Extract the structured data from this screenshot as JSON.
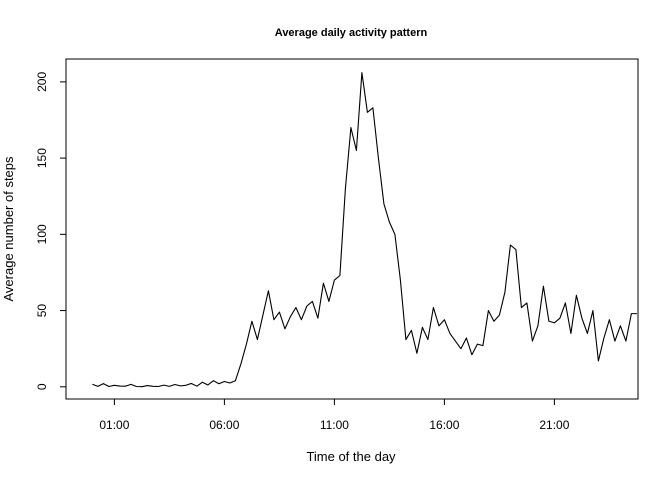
{
  "chart_data": {
    "type": "line",
    "title": "Average daily activity pattern",
    "xlabel": "Time of the day",
    "ylabel": "Average number of steps",
    "x_unit": "time of day (hours)",
    "xlim": [
      -1.2,
      24.8
    ],
    "ylim": [
      -8,
      215
    ],
    "x_ticks": [
      {
        "value": 1,
        "label": "01:00"
      },
      {
        "value": 6,
        "label": "06:00"
      },
      {
        "value": 11,
        "label": "11:00"
      },
      {
        "value": 16,
        "label": "16:00"
      },
      {
        "value": 21,
        "label": "21:00"
      }
    ],
    "y_ticks": [
      {
        "value": 0,
        "label": "0"
      },
      {
        "value": 50,
        "label": "50"
      },
      {
        "value": 100,
        "label": "100"
      },
      {
        "value": 150,
        "label": "150"
      },
      {
        "value": 200,
        "label": "200"
      }
    ],
    "grid": false,
    "legend": "none",
    "series": [
      {
        "color": "#000000",
        "points": [
          [
            0,
            1.7
          ],
          [
            0.25,
            0.3
          ],
          [
            0.5,
            2.1
          ],
          [
            0.75,
            0.2
          ],
          [
            1,
            1.0
          ],
          [
            1.25,
            0.5
          ],
          [
            1.5,
            0.4
          ],
          [
            1.75,
            1.6
          ],
          [
            2,
            0.2
          ],
          [
            2.25,
            0.1
          ],
          [
            2.5,
            0.8
          ],
          [
            2.75,
            0.3
          ],
          [
            3,
            0.2
          ],
          [
            3.25,
            1.1
          ],
          [
            3.5,
            0.3
          ],
          [
            3.75,
            1.5
          ],
          [
            4,
            0.6
          ],
          [
            4.25,
            1.0
          ],
          [
            4.5,
            2.2
          ],
          [
            4.75,
            0.4
          ],
          [
            5,
            3.0
          ],
          [
            5.25,
            1.2
          ],
          [
            5.5,
            4.0
          ],
          [
            5.75,
            2.0
          ],
          [
            6,
            3.5
          ],
          [
            6.25,
            2.5
          ],
          [
            6.5,
            4.0
          ],
          [
            6.75,
            15
          ],
          [
            7,
            28
          ],
          [
            7.25,
            43
          ],
          [
            7.5,
            31
          ],
          [
            7.75,
            47
          ],
          [
            8,
            63
          ],
          [
            8.25,
            44
          ],
          [
            8.5,
            49
          ],
          [
            8.75,
            38
          ],
          [
            9,
            46
          ],
          [
            9.25,
            52
          ],
          [
            9.5,
            44
          ],
          [
            9.75,
            53
          ],
          [
            10,
            56
          ],
          [
            10.25,
            45
          ],
          [
            10.5,
            68
          ],
          [
            10.75,
            56
          ],
          [
            11,
            70
          ],
          [
            11.25,
            73
          ],
          [
            11.5,
            130
          ],
          [
            11.75,
            170
          ],
          [
            12,
            155
          ],
          [
            12.25,
            206
          ],
          [
            12.5,
            180
          ],
          [
            12.75,
            183
          ],
          [
            13,
            150
          ],
          [
            13.25,
            120
          ],
          [
            13.5,
            108
          ],
          [
            13.75,
            100
          ],
          [
            14,
            70
          ],
          [
            14.25,
            31
          ],
          [
            14.5,
            37
          ],
          [
            14.75,
            22
          ],
          [
            15,
            39
          ],
          [
            15.25,
            31
          ],
          [
            15.5,
            52
          ],
          [
            15.75,
            40
          ],
          [
            16,
            44
          ],
          [
            16.25,
            35
          ],
          [
            16.5,
            30
          ],
          [
            16.75,
            25
          ],
          [
            17,
            32
          ],
          [
            17.25,
            21
          ],
          [
            17.5,
            28
          ],
          [
            17.75,
            27
          ],
          [
            18,
            50
          ],
          [
            18.25,
            43
          ],
          [
            18.5,
            47
          ],
          [
            18.75,
            62
          ],
          [
            19,
            93
          ],
          [
            19.25,
            90
          ],
          [
            19.5,
            52
          ],
          [
            19.75,
            55
          ],
          [
            20,
            30
          ],
          [
            20.25,
            40
          ],
          [
            20.5,
            66
          ],
          [
            20.75,
            43
          ],
          [
            21,
            42
          ],
          [
            21.25,
            45
          ],
          [
            21.5,
            55
          ],
          [
            21.75,
            35
          ],
          [
            22,
            60
          ],
          [
            22.25,
            45
          ],
          [
            22.5,
            35
          ],
          [
            22.75,
            50
          ],
          [
            23,
            17
          ],
          [
            23.25,
            32
          ],
          [
            23.5,
            44
          ],
          [
            23.75,
            30
          ],
          [
            24,
            40
          ],
          [
            24.25,
            30
          ],
          [
            24.5,
            48
          ],
          [
            24.75,
            48
          ]
        ]
      }
    ]
  }
}
